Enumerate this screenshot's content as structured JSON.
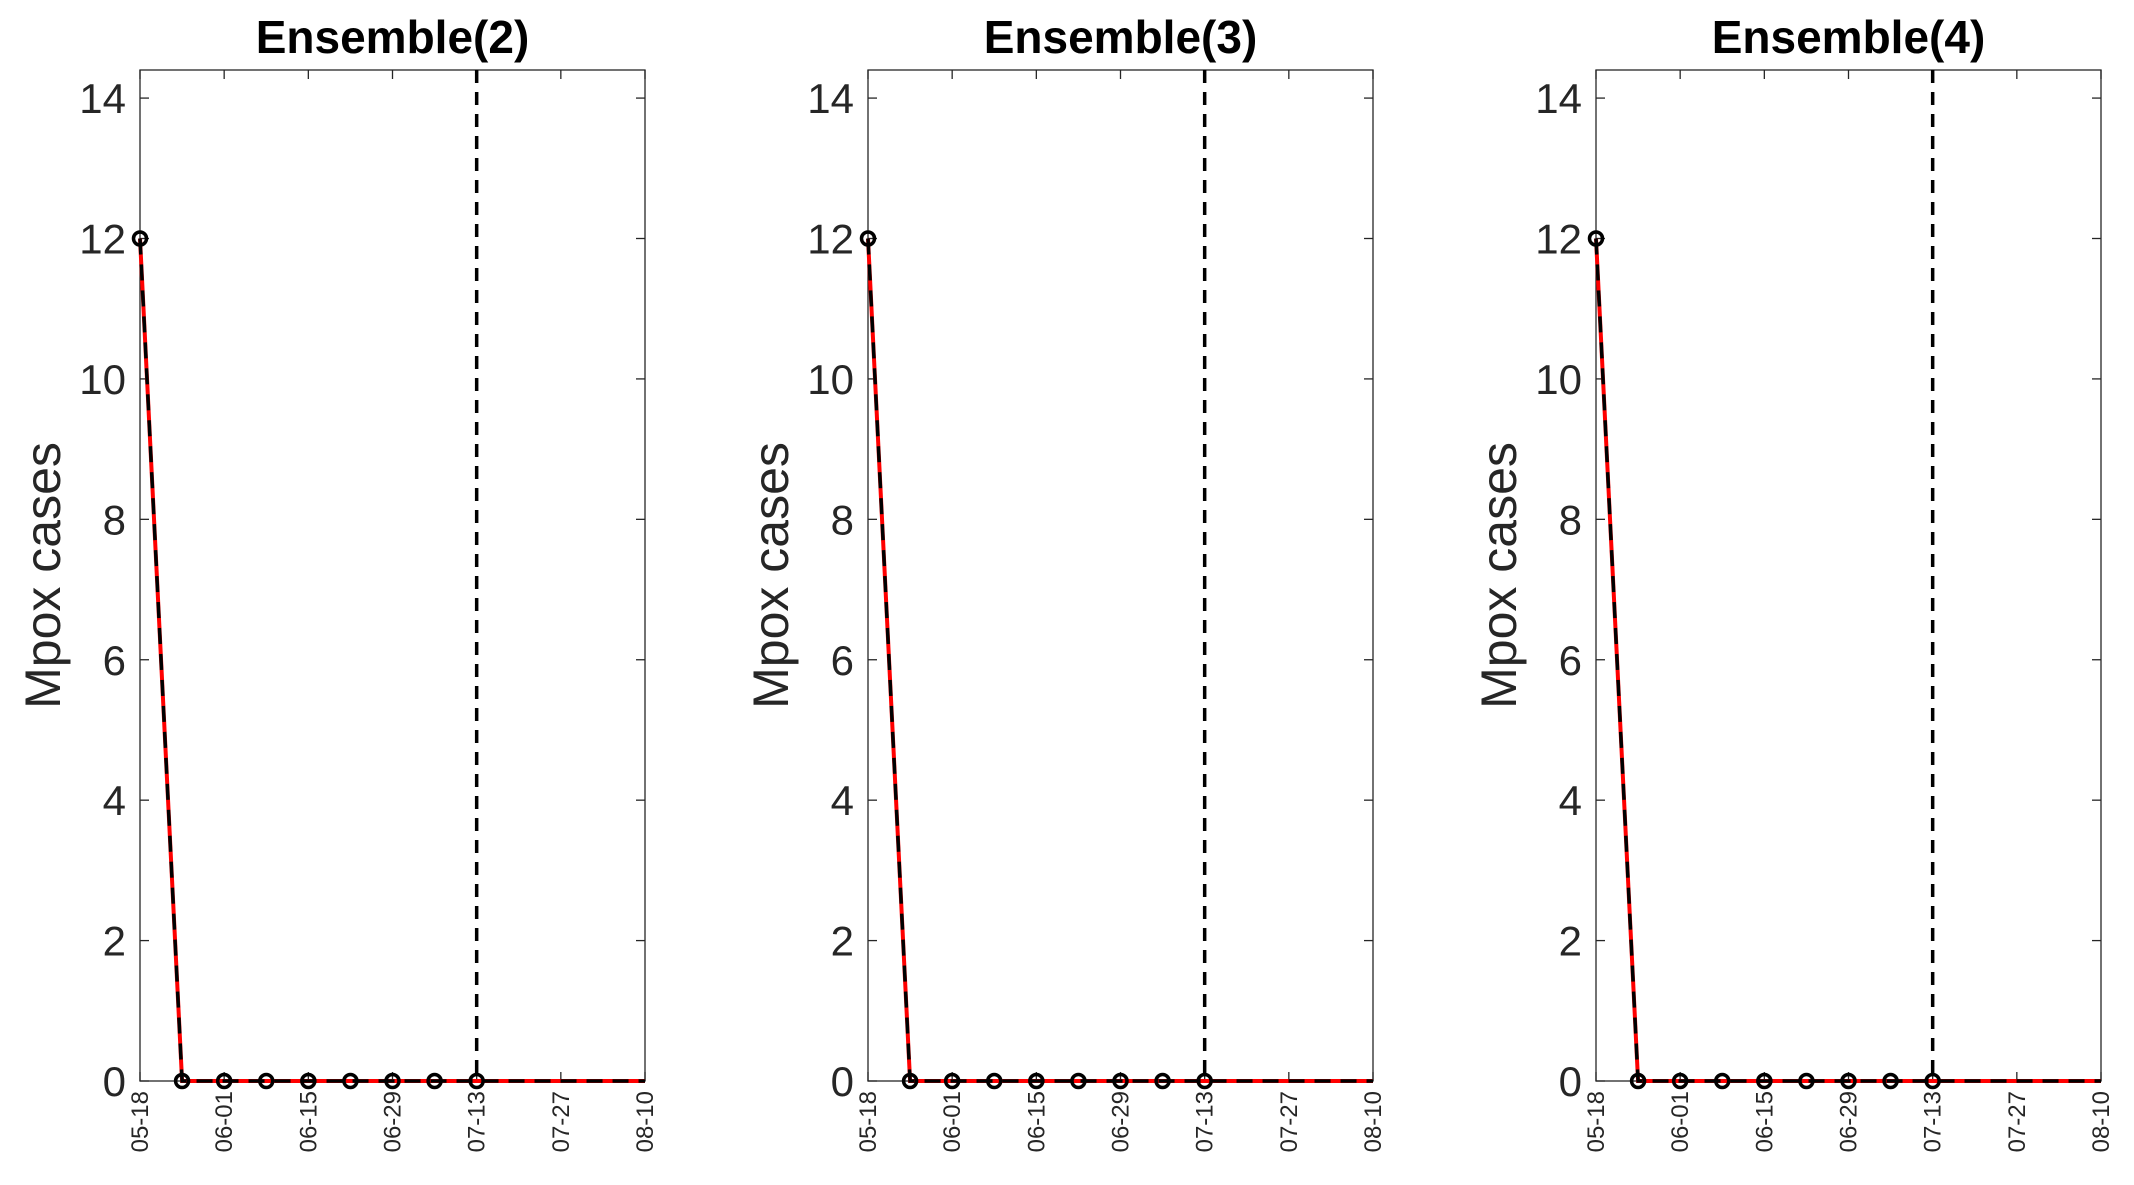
{
  "chart_data": [
    {
      "type": "line",
      "title": "Ensemble(2)",
      "ylabel": "Mpox cases",
      "xlabel": "",
      "xlim": [
        "05-18",
        "08-10"
      ],
      "ylim": [
        0,
        14.4
      ],
      "yticks": [
        0,
        2,
        4,
        6,
        8,
        10,
        12,
        14
      ],
      "xticks": [
        "05-18",
        "06-01",
        "06-15",
        "06-29",
        "07-13",
        "07-27",
        "08-10"
      ],
      "vline": "07-13",
      "data_x": [
        "05-18",
        "05-25",
        "06-01",
        "06-08",
        "06-15",
        "06-22",
        "06-29",
        "07-06",
        "07-13"
      ],
      "data_y": [
        12,
        0,
        0,
        0,
        0,
        0,
        0,
        0,
        0
      ],
      "fit_x": [
        "05-18",
        "05-25",
        "06-01",
        "06-08",
        "06-15",
        "06-22",
        "06-29",
        "07-06",
        "07-13",
        "07-20",
        "07-27",
        "08-03",
        "08-10"
      ],
      "fit_y": [
        12,
        0,
        0,
        0,
        0,
        0,
        0,
        0,
        0,
        0,
        0,
        0,
        0
      ],
      "grid": false
    },
    {
      "type": "line",
      "title": "Ensemble(3)",
      "ylabel": "Mpox cases",
      "xlabel": "",
      "xlim": [
        "05-18",
        "08-10"
      ],
      "ylim": [
        0,
        14.4
      ],
      "yticks": [
        0,
        2,
        4,
        6,
        8,
        10,
        12,
        14
      ],
      "xticks": [
        "05-18",
        "06-01",
        "06-15",
        "06-29",
        "07-13",
        "07-27",
        "08-10"
      ],
      "vline": "07-13",
      "data_x": [
        "05-18",
        "05-25",
        "06-01",
        "06-08",
        "06-15",
        "06-22",
        "06-29",
        "07-06",
        "07-13"
      ],
      "data_y": [
        12,
        0,
        0,
        0,
        0,
        0,
        0,
        0,
        0
      ],
      "fit_x": [
        "05-18",
        "05-25",
        "06-01",
        "06-08",
        "06-15",
        "06-22",
        "06-29",
        "07-06",
        "07-13",
        "07-20",
        "07-27",
        "08-03",
        "08-10"
      ],
      "fit_y": [
        12,
        0,
        0,
        0,
        0,
        0,
        0,
        0,
        0,
        0,
        0,
        0,
        0
      ],
      "grid": false
    },
    {
      "type": "line",
      "title": "Ensemble(4)",
      "ylabel": "Mpox cases",
      "xlabel": "",
      "xlim": [
        "05-18",
        "08-10"
      ],
      "ylim": [
        0,
        14.4
      ],
      "yticks": [
        0,
        2,
        4,
        6,
        8,
        10,
        12,
        14
      ],
      "xticks": [
        "05-18",
        "06-01",
        "06-15",
        "06-29",
        "07-13",
        "07-27",
        "08-10"
      ],
      "vline": "07-13",
      "data_x": [
        "05-18",
        "05-25",
        "06-01",
        "06-08",
        "06-15",
        "06-22",
        "06-29",
        "07-06",
        "07-13"
      ],
      "data_y": [
        12,
        0,
        0,
        0,
        0,
        0,
        0,
        0,
        0
      ],
      "fit_x": [
        "05-18",
        "05-25",
        "06-01",
        "06-08",
        "06-15",
        "06-22",
        "06-29",
        "07-06",
        "07-13",
        "07-20",
        "07-27",
        "08-03",
        "08-10"
      ],
      "fit_y": [
        12,
        0,
        0,
        0,
        0,
        0,
        0,
        0,
        0,
        0,
        0,
        0,
        0
      ],
      "grid": false
    }
  ],
  "colors": {
    "fit_line": "#ff0000",
    "data_line": "#000000",
    "marker": "#000000",
    "axis": "#262626"
  }
}
